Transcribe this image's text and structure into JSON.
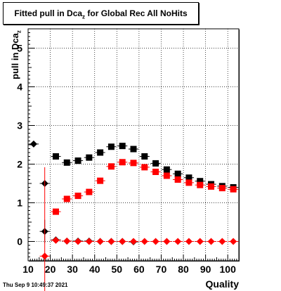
{
  "title_main": "Fitted pull in Dca",
  "title_sub": "z",
  "title_tail": " for Global Rec All NoHits",
  "ylabel_main": "pull in Dca",
  "ylabel_sub": "z",
  "xlabel": "Quality",
  "timestamp": "Thu Sep  9 10:49:37 2021",
  "chart_data": {
    "type": "scatter",
    "title": "Fitted pull in Dcaz for Global Rec All NoHits",
    "xlabel": "Quality",
    "ylabel": "pull in Dcaz",
    "xlim": [
      10,
      105
    ],
    "ylim": [
      -0.5,
      5.5
    ],
    "xticks": [
      10,
      20,
      30,
      40,
      50,
      60,
      70,
      80,
      90,
      100
    ],
    "yticks": [
      0,
      1,
      2,
      3,
      4,
      5
    ],
    "grid": true,
    "series": [
      {
        "color": "#000000",
        "marker": "square",
        "x": [
          22.5,
          27.5,
          32.5,
          37.5,
          42.5,
          47.5,
          52.5,
          57.5,
          62.5,
          67.5,
          72.5,
          77.5,
          82.5,
          87.5,
          92.5,
          97.5,
          102.5
        ],
        "y": [
          2.2,
          2.04,
          2.09,
          2.17,
          2.3,
          2.45,
          2.47,
          2.39,
          2.2,
          2.02,
          1.86,
          1.75,
          1.65,
          1.56,
          1.48,
          1.43,
          1.4
        ],
        "yerr": [
          0.05,
          0.03,
          0.03,
          0.03,
          0.03,
          0.03,
          0.03,
          0.03,
          0.03,
          0.03,
          0.03,
          0.03,
          0.03,
          0.03,
          0.03,
          0.03,
          0.03
        ]
      },
      {
        "color": "#ff0000",
        "marker": "square",
        "x": [
          22.5,
          27.5,
          32.5,
          37.5,
          42.5,
          47.5,
          52.5,
          57.5,
          62.5,
          67.5,
          72.5,
          77.5,
          82.5,
          87.5,
          92.5,
          97.5,
          102.5
        ],
        "y": [
          0.77,
          1.1,
          1.18,
          1.28,
          1.57,
          1.94,
          2.05,
          2.03,
          1.92,
          1.8,
          1.7,
          1.6,
          1.52,
          1.46,
          1.42,
          1.38,
          1.35
        ],
        "yerr": [
          0.05,
          0.03,
          0.03,
          0.03,
          0.03,
          0.03,
          0.03,
          0.03,
          0.03,
          0.03,
          0.03,
          0.03,
          0.03,
          0.03,
          0.03,
          0.03,
          0.03
        ]
      },
      {
        "color": "#000000",
        "marker": "diamond",
        "x": [
          12.5,
          17.5,
          17.5,
          22.5,
          27.5,
          32.5,
          37.5,
          42.5,
          47.5,
          52.5,
          57.5
        ],
        "y": [
          2.52,
          1.5,
          0.26,
          0.04,
          0.01,
          0.01,
          0.01,
          0.0,
          0.0,
          0.0,
          -0.01
        ],
        "yerr": [
          0,
          0,
          0.3,
          0,
          0,
          0,
          0,
          0,
          0,
          0,
          0
        ]
      },
      {
        "color": "#ff0000",
        "marker": "diamond",
        "x": [
          17.5,
          22.5,
          27.5,
          32.5,
          37.5,
          42.5,
          47.5,
          52.5,
          57.5,
          62.5,
          67.5,
          72.5,
          77.5,
          82.5,
          87.5,
          92.5,
          97.5,
          102.5
        ],
        "y": [
          -0.38,
          0.03,
          0.01,
          0.0,
          0.0,
          0.0,
          0.0,
          0.0,
          0.0,
          0.0,
          0.0,
          0.0,
          0.0,
          0.0,
          0.0,
          0.0,
          0.0,
          0.0
        ],
        "yerr": [
          2.3,
          0,
          0,
          0,
          0,
          0,
          0,
          0,
          0,
          0,
          0,
          0,
          0,
          0,
          0,
          0,
          0,
          0
        ]
      }
    ]
  }
}
